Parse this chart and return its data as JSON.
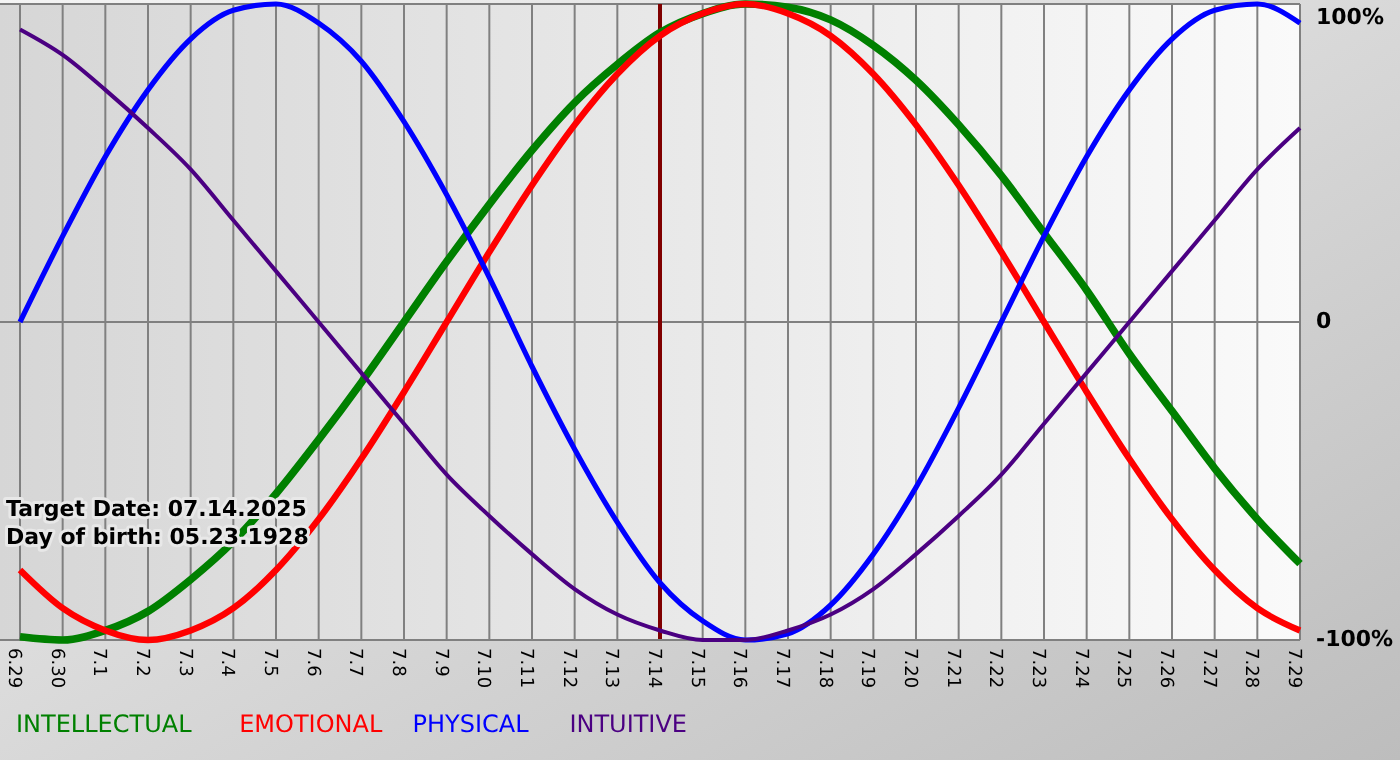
{
  "chart_data": {
    "type": "line",
    "categories": [
      "6.29",
      "6.30",
      "7.1",
      "7.2",
      "7.3",
      "7.4",
      "7.5",
      "7.6",
      "7.7",
      "7.8",
      "7.9",
      "7.10",
      "7.11",
      "7.12",
      "7.13",
      "7.14",
      "7.15",
      "7.16",
      "7.17",
      "7.18",
      "7.19",
      "7.20",
      "7.21",
      "7.22",
      "7.23",
      "7.24",
      "7.25",
      "7.26",
      "7.27",
      "7.28",
      "7.29"
    ],
    "series": [
      {
        "name": "INTELLECTUAL",
        "color": "#008000",
        "values": [
          -99,
          -100,
          -97,
          -91,
          -81,
          -69,
          -54,
          -37,
          -19,
          0,
          19,
          37,
          54,
          69,
          81,
          91,
          97,
          100,
          99,
          95,
          87,
          76,
          62,
          46,
          28,
          10,
          -10,
          -28,
          -46,
          -62,
          -76
        ]
      },
      {
        "name": "EMOTIONAL",
        "color": "#ff0000",
        "values": [
          -78,
          -90,
          -97,
          -100,
          -97,
          -90,
          -78,
          -62,
          -43,
          -22,
          0,
          22,
          43,
          62,
          78,
          90,
          97,
          100,
          97,
          90,
          78,
          62,
          43,
          22,
          0,
          -22,
          -43,
          -62,
          -78,
          -90,
          -97
        ]
      },
      {
        "name": "PHYSICAL",
        "color": "#0000ff",
        "values": [
          0,
          27,
          52,
          73,
          89,
          98,
          100,
          94,
          82,
          63,
          40,
          14,
          -14,
          -40,
          -63,
          -82,
          -94,
          -100,
          -98,
          -89,
          -73,
          -52,
          -27,
          0,
          27,
          52,
          73,
          89,
          98,
          100,
          94
        ]
      },
      {
        "name": "INTUITIVE",
        "color": "#4b0082",
        "values": [
          92,
          84,
          73,
          61,
          48,
          32,
          16,
          0,
          -16,
          -32,
          -48,
          -61,
          -73,
          -84,
          -92,
          -97,
          -100,
          -100,
          -97,
          -92,
          -84,
          -73,
          -61,
          -48,
          -32,
          -16,
          0,
          16,
          32,
          48,
          61
        ]
      }
    ],
    "ylim": [
      -100,
      100
    ],
    "yticks": [
      {
        "value": 100,
        "label": "100%"
      },
      0,
      {
        "value": -100,
        "label": "-100%"
      }
    ],
    "grid": true,
    "legend": "bottom",
    "ref_lines": [
      {
        "axis": "x",
        "value": "7.14",
        "color": "#800000"
      }
    ],
    "annotations": [
      "Target Date: 07.14.2025",
      "Day of birth: 05.23.1928"
    ]
  }
}
